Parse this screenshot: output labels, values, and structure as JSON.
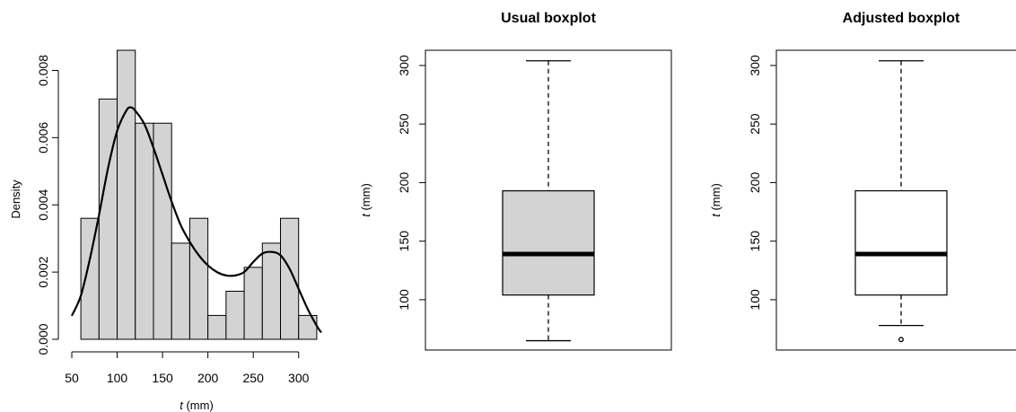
{
  "chart_data": [
    {
      "type": "histogram",
      "title": "",
      "xlabel": {
        "var": "t",
        "unit": " (mm)"
      },
      "ylabel": "Density",
      "xlim": [
        50,
        325
      ],
      "ylim": [
        0,
        0.0086
      ],
      "xticks": [
        50,
        100,
        150,
        200,
        250,
        300
      ],
      "yticks": [
        0.0,
        0.002,
        0.004,
        0.006,
        0.008
      ],
      "ytick_labels": [
        "0.000",
        "0.002",
        "0.004",
        "0.006",
        "0.008"
      ],
      "bins": [
        60,
        80,
        100,
        120,
        140,
        160,
        180,
        200,
        220,
        240,
        260,
        280,
        300,
        320
      ],
      "density": [
        0.0036,
        0.00715,
        0.0086,
        0.00643,
        0.00643,
        0.00286,
        0.0036,
        0.00071,
        0.00143,
        0.00214,
        0.00286,
        0.0036,
        0.00071
      ],
      "bar_fill": "#d3d3d3",
      "kde_curve": {
        "x": [
          50,
          60,
          70,
          80,
          90,
          100,
          110,
          115,
          120,
          130,
          140,
          150,
          160,
          170,
          180,
          190,
          200,
          210,
          220,
          230,
          240,
          250,
          260,
          270,
          280,
          290,
          300,
          310,
          320,
          325
        ],
        "y": [
          0.0007,
          0.0013,
          0.0024,
          0.0037,
          0.0051,
          0.0062,
          0.0068,
          0.0069,
          0.0068,
          0.0064,
          0.0057,
          0.0049,
          0.0041,
          0.0034,
          0.0029,
          0.0025,
          0.0022,
          0.002,
          0.0019,
          0.0019,
          0.002,
          0.0023,
          0.00255,
          0.0026,
          0.0025,
          0.0021,
          0.0015,
          0.0009,
          0.0004,
          0.0002
        ]
      }
    },
    {
      "type": "boxplot",
      "title": "Usual boxplot",
      "ylabel": {
        "var": "t",
        "unit": " (mm)"
      },
      "ylim": [
        57,
        313
      ],
      "yticks": [
        100,
        150,
        200,
        250,
        300
      ],
      "ytick_labels": [
        "100",
        "150",
        "200",
        "250",
        "300"
      ],
      "lower_whisker": 65,
      "q1": 104,
      "median": 139,
      "q3": 193,
      "upper_whisker": 304,
      "outliers": [],
      "box_fill": "#d3d3d3"
    },
    {
      "type": "boxplot",
      "title": "Adjusted boxplot",
      "ylabel": {
        "var": "t",
        "unit": " (mm)"
      },
      "ylim": [
        57,
        313
      ],
      "yticks": [
        100,
        150,
        200,
        250,
        300
      ],
      "ytick_labels": [
        "100",
        "150",
        "200",
        "250",
        "300"
      ],
      "lower_whisker": 78,
      "q1": 104,
      "median": 139,
      "q3": 193,
      "upper_whisker": 304,
      "outliers": [
        66
      ],
      "box_fill": "#ffffff"
    }
  ]
}
